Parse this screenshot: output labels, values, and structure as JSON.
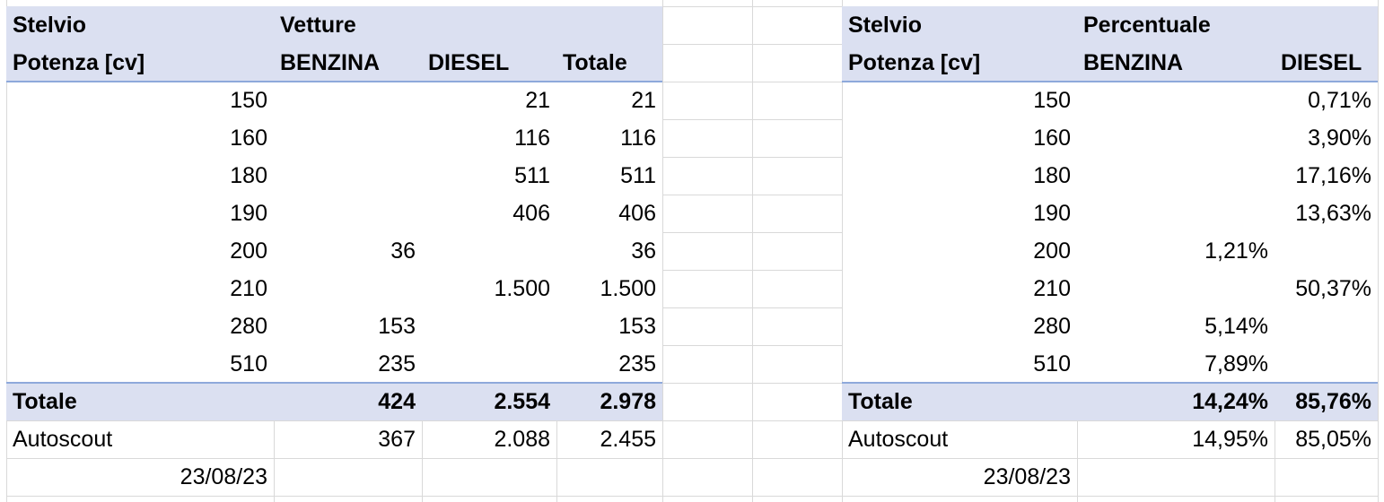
{
  "left": {
    "title": "Stelvio",
    "measure": "Vetture",
    "headers": [
      "Potenza [cv]",
      "BENZINA",
      "DIESEL",
      "Totale"
    ],
    "rows": [
      [
        "150",
        null,
        "21",
        "21"
      ],
      [
        "160",
        null,
        "116",
        "116"
      ],
      [
        "180",
        null,
        "511",
        "511"
      ],
      [
        "190",
        null,
        "406",
        "406"
      ],
      [
        "200",
        "36",
        null,
        "36"
      ],
      [
        "210",
        null,
        "1.500",
        "1.500"
      ],
      [
        "280",
        "153",
        null,
        "153"
      ],
      [
        "510",
        "235",
        null,
        "235"
      ]
    ],
    "total": [
      "Totale",
      "424",
      "2.554",
      "2.978"
    ],
    "autoscout": [
      "Autoscout",
      "367",
      "2.088",
      "2.455"
    ],
    "date": "23/08/23"
  },
  "right": {
    "title": "Stelvio",
    "measure": "Percentuale",
    "headers": [
      "Potenza [cv]",
      "BENZINA",
      "DIESEL"
    ],
    "rows": [
      [
        "150",
        null,
        "0,71%"
      ],
      [
        "160",
        null,
        "3,90%"
      ],
      [
        "180",
        null,
        "17,16%"
      ],
      [
        "190",
        null,
        "13,63%"
      ],
      [
        "200",
        "1,21%",
        null
      ],
      [
        "210",
        null,
        "50,37%"
      ],
      [
        "280",
        "5,14%",
        null
      ],
      [
        "510",
        "7,89%",
        null
      ]
    ],
    "total": [
      "Totale",
      "14,24%",
      "85,76%"
    ],
    "autoscout": [
      "Autoscout",
      "14,95%",
      "85,05%"
    ],
    "date": "23/08/23"
  }
}
